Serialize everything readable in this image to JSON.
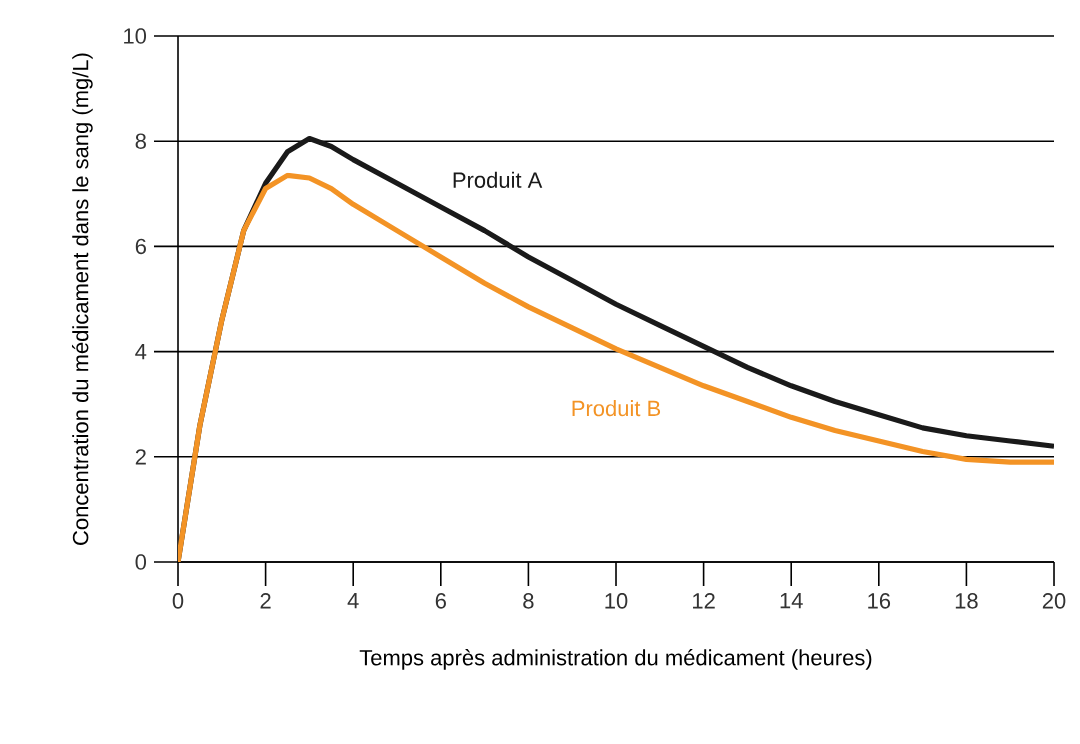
{
  "chart_data": {
    "type": "line",
    "xlabel": "Temps après administration du médicament (heures)",
    "ylabel": "Concentration du médicament dans le sang (mg/L)",
    "xlim": [
      0,
      20
    ],
    "ylim": [
      0,
      10
    ],
    "xticks": [
      0,
      2,
      4,
      6,
      8,
      10,
      12,
      14,
      16,
      18,
      20
    ],
    "yticks": [
      0,
      2,
      4,
      6,
      8,
      10
    ],
    "grid": "y",
    "marker": "none",
    "line_style": "solid",
    "series": [
      {
        "name": "Produit A",
        "color": "#1a1a1a",
        "x": [
          0,
          0.5,
          1,
          1.5,
          2,
          2.5,
          3,
          3.5,
          4,
          5,
          6,
          7,
          8,
          9,
          10,
          11,
          12,
          13,
          14,
          15,
          16,
          17,
          18,
          19,
          20
        ],
        "values": [
          0,
          2.6,
          4.6,
          6.3,
          7.2,
          7.8,
          8.05,
          7.9,
          7.65,
          7.2,
          6.75,
          6.3,
          5.8,
          5.35,
          4.9,
          4.5,
          4.1,
          3.7,
          3.35,
          3.05,
          2.8,
          2.55,
          2.4,
          2.3,
          2.2
        ]
      },
      {
        "name": "Produit B",
        "color": "#f39325",
        "x": [
          0,
          0.5,
          1,
          1.5,
          2,
          2.5,
          3,
          3.5,
          4,
          5,
          6,
          7,
          8,
          9,
          10,
          11,
          12,
          13,
          14,
          15,
          16,
          17,
          18,
          19,
          20
        ],
        "values": [
          0,
          2.6,
          4.6,
          6.3,
          7.1,
          7.35,
          7.3,
          7.1,
          6.8,
          6.3,
          5.8,
          5.3,
          4.85,
          4.45,
          4.05,
          3.7,
          3.35,
          3.05,
          2.75,
          2.5,
          2.3,
          2.1,
          1.95,
          1.9,
          1.9
        ]
      }
    ]
  }
}
